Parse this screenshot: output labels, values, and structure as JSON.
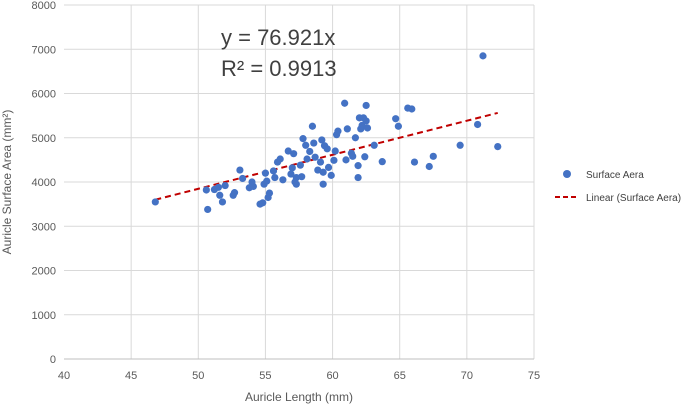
{
  "chart_data": {
    "type": "scatter",
    "title": "",
    "xlabel": "Auricle Length (mm)",
    "ylabel": "Auricle Surface Area (mm²)",
    "xlim": [
      40,
      75
    ],
    "ylim": [
      0,
      8000
    ],
    "xticks": [
      40,
      45,
      50,
      55,
      60,
      65,
      70,
      75
    ],
    "yticks": [
      0,
      1000,
      2000,
      3000,
      4000,
      5000,
      6000,
      7000,
      8000
    ],
    "grid": "horizontal",
    "legend_position": "right",
    "series": [
      {
        "name": "Surface Aera",
        "color": "#4472C4",
        "points": [
          [
            46.8,
            3550
          ],
          [
            50.6,
            3820
          ],
          [
            50.7,
            3380
          ],
          [
            51.2,
            3830
          ],
          [
            51.5,
            3880
          ],
          [
            51.6,
            3700
          ],
          [
            51.8,
            3550
          ],
          [
            52.0,
            3920
          ],
          [
            52.6,
            3700
          ],
          [
            52.7,
            3760
          ],
          [
            53.1,
            4270
          ],
          [
            53.3,
            4080
          ],
          [
            53.8,
            3870
          ],
          [
            54.0,
            4000
          ],
          [
            54.1,
            3900
          ],
          [
            54.6,
            3500
          ],
          [
            54.8,
            3530
          ],
          [
            54.9,
            3950
          ],
          [
            55.0,
            4200
          ],
          [
            55.1,
            4020
          ],
          [
            55.2,
            3650
          ],
          [
            55.3,
            3750
          ],
          [
            55.6,
            4250
          ],
          [
            55.7,
            4100
          ],
          [
            55.9,
            4450
          ],
          [
            56.1,
            4520
          ],
          [
            56.3,
            4050
          ],
          [
            56.7,
            4700
          ],
          [
            56.9,
            4180
          ],
          [
            57.0,
            4320
          ],
          [
            57.1,
            4640
          ],
          [
            57.2,
            4000
          ],
          [
            57.3,
            4100
          ],
          [
            57.3,
            3950
          ],
          [
            57.6,
            4380
          ],
          [
            57.7,
            4120
          ],
          [
            57.8,
            4980
          ],
          [
            58.0,
            4830
          ],
          [
            58.1,
            4520
          ],
          [
            58.3,
            4690
          ],
          [
            58.5,
            5260
          ],
          [
            58.6,
            4880
          ],
          [
            58.7,
            4560
          ],
          [
            58.9,
            4270
          ],
          [
            59.1,
            4450
          ],
          [
            59.2,
            4950
          ],
          [
            59.3,
            3950
          ],
          [
            59.3,
            4220
          ],
          [
            59.4,
            4820
          ],
          [
            59.6,
            4750
          ],
          [
            59.7,
            4330
          ],
          [
            59.9,
            4150
          ],
          [
            60.1,
            4490
          ],
          [
            60.2,
            4700
          ],
          [
            60.3,
            5070
          ],
          [
            60.4,
            5150
          ],
          [
            60.9,
            5780
          ],
          [
            61.0,
            4500
          ],
          [
            61.1,
            5200
          ],
          [
            61.4,
            4650
          ],
          [
            61.5,
            4580
          ],
          [
            61.7,
            5000
          ],
          [
            61.9,
            4100
          ],
          [
            61.9,
            4370
          ],
          [
            62.0,
            5450
          ],
          [
            62.1,
            5200
          ],
          [
            62.2,
            5280
          ],
          [
            62.3,
            5450
          ],
          [
            62.4,
            4570
          ],
          [
            62.5,
            5380
          ],
          [
            62.5,
            5730
          ],
          [
            62.6,
            5220
          ],
          [
            63.1,
            4830
          ],
          [
            63.7,
            4460
          ],
          [
            64.7,
            5430
          ],
          [
            64.9,
            5260
          ],
          [
            65.6,
            5670
          ],
          [
            65.9,
            5650
          ],
          [
            66.1,
            4450
          ],
          [
            67.2,
            4350
          ],
          [
            67.5,
            4580
          ],
          [
            69.5,
            4830
          ],
          [
            70.8,
            5300
          ],
          [
            71.2,
            6850
          ],
          [
            72.3,
            4800
          ]
        ]
      }
    ],
    "trendline": {
      "name": "Linear (Surface Aera)",
      "type": "linear",
      "color": "#C00000",
      "slope": 76.921,
      "x_range": [
        46.8,
        72.3
      ],
      "equation": "y = 76.921x",
      "r_squared": "R² = 0.9913"
    }
  }
}
